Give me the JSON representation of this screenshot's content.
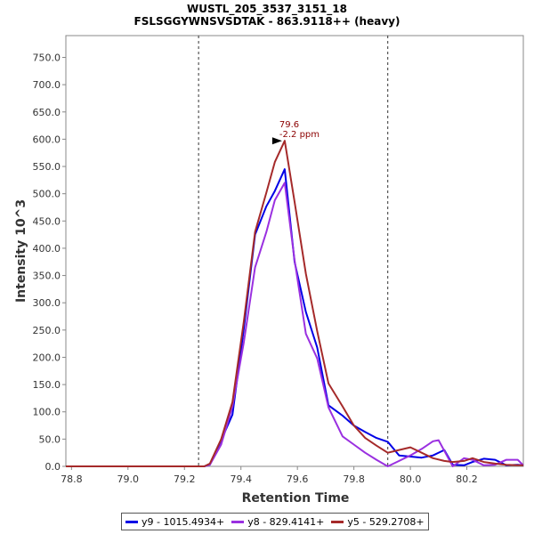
{
  "chart_data": {
    "type": "line",
    "title": "WUSTL_205_3537_3151_18",
    "subtitle": "FSLSGGYWNSVSDTAK - 863.9118++ (heavy)",
    "xlabel": "Retention Time",
    "ylabel": "Intensity 10^3",
    "xlim": [
      78.78,
      80.4
    ],
    "ylim": [
      0,
      790
    ],
    "xticks": [
      78.8,
      79.0,
      79.2,
      79.4,
      79.6,
      79.8,
      80.0,
      80.2
    ],
    "xtick_labels": [
      "78.8",
      "79.0",
      "79.2",
      "79.4",
      "79.6",
      "79.8",
      "80.0",
      "80.2"
    ],
    "yticks": [
      0,
      50,
      100,
      150,
      200,
      250,
      300,
      350,
      400,
      450,
      500,
      550,
      600,
      650,
      700,
      750
    ],
    "ytick_labels": [
      "0.0",
      "50.0",
      "100.0",
      "150.0",
      "200.0",
      "250.0",
      "300.0",
      "350.0",
      "400.0",
      "450.0",
      "500.0",
      "550.0",
      "600.0",
      "650.0",
      "700.0",
      "750.0"
    ],
    "vlines": [
      79.25,
      79.92
    ],
    "grid": false,
    "legend_position": "bottom",
    "annotation": {
      "x": 79.555,
      "y": 597,
      "line1": "79.6",
      "line2": "-2.2 ppm",
      "color": "#8b0000"
    },
    "series": [
      {
        "name": "y9 - 1015.4934+",
        "color": "#0000e6",
        "x": [
          78.78,
          79.27,
          79.29,
          79.33,
          79.37,
          79.41,
          79.45,
          79.49,
          79.52,
          79.555,
          79.59,
          79.63,
          79.67,
          79.71,
          79.76,
          79.8,
          79.84,
          79.88,
          79.92,
          79.96,
          80.0,
          80.04,
          80.08,
          80.12,
          80.15,
          80.19,
          80.22,
          80.26,
          80.3,
          80.34,
          80.38,
          80.4
        ],
        "y": [
          0,
          0,
          3,
          48,
          95,
          252,
          425,
          477,
          505,
          545,
          375,
          283,
          218,
          112,
          93,
          75,
          63,
          52,
          45,
          20,
          18,
          16,
          20,
          30,
          3,
          2,
          8,
          14,
          12,
          2,
          3,
          2
        ]
      },
      {
        "name": "y8 - 829.4141+",
        "color": "#9a30e0",
        "x": [
          78.78,
          79.27,
          79.29,
          79.33,
          79.37,
          79.41,
          79.45,
          79.49,
          79.52,
          79.555,
          79.59,
          79.63,
          79.67,
          79.71,
          79.76,
          79.8,
          79.84,
          79.88,
          79.92,
          79.96,
          80.0,
          80.04,
          80.08,
          80.1,
          80.15,
          80.19,
          80.22,
          80.26,
          80.3,
          80.34,
          80.38,
          80.4
        ],
        "y": [
          0,
          0,
          3,
          40,
          110,
          227,
          365,
          430,
          488,
          520,
          378,
          243,
          198,
          108,
          55,
          40,
          25,
          12,
          0,
          10,
          20,
          32,
          46,
          48,
          0,
          15,
          12,
          2,
          3,
          12,
          12,
          2
        ]
      },
      {
        "name": "y5 - 529.2708+",
        "color": "#a52a2a",
        "x": [
          78.78,
          79.27,
          79.29,
          79.33,
          79.37,
          79.41,
          79.45,
          79.49,
          79.52,
          79.555,
          79.59,
          79.63,
          79.67,
          79.71,
          79.76,
          79.8,
          79.84,
          79.88,
          79.92,
          79.96,
          80.0,
          80.04,
          80.08,
          80.12,
          80.15,
          80.19,
          80.22,
          80.26,
          80.3,
          80.34,
          80.38,
          80.4
        ],
        "y": [
          0,
          0,
          5,
          50,
          118,
          265,
          430,
          502,
          558,
          597,
          485,
          353,
          248,
          152,
          110,
          75,
          52,
          38,
          25,
          30,
          35,
          25,
          15,
          10,
          8,
          10,
          15,
          8,
          5,
          3,
          2,
          2
        ]
      }
    ]
  }
}
